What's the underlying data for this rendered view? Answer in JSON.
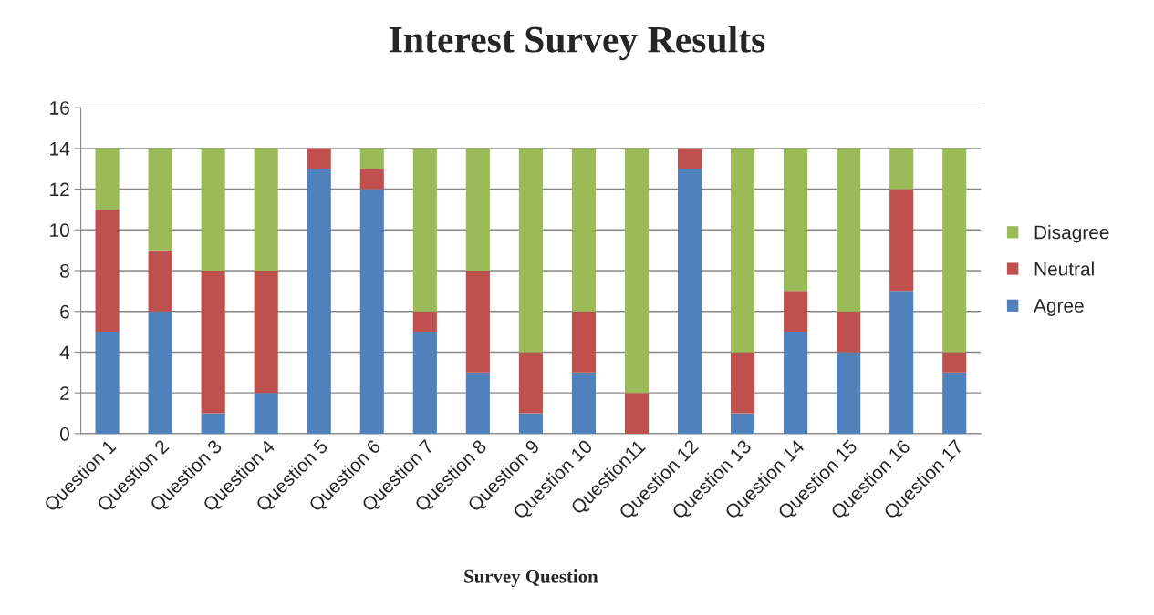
{
  "chart_data": {
    "type": "bar",
    "title": "Interest Survey Results",
    "xlabel": "Survey Question",
    "categories": [
      "Question 1",
      "Question 2",
      "Question 3",
      "Question 4",
      "Question 5",
      "Question 6",
      "Question 7",
      "Question 8",
      "Question 9",
      "Question 10",
      "Question11",
      "Question 12",
      "Question 13",
      "Question 14",
      "Question 15",
      "Question 16",
      "Question 17"
    ],
    "stacked": true,
    "series": [
      {
        "name": "Agree",
        "color": "#4f81bd",
        "values": [
          5,
          6,
          1,
          2,
          13,
          12,
          5,
          3,
          1,
          3,
          0,
          13,
          1,
          5,
          4,
          7,
          3
        ]
      },
      {
        "name": "Neutral",
        "color": "#c0504d",
        "values": [
          6,
          3,
          7,
          6,
          1,
          1,
          1,
          5,
          3,
          3,
          2,
          1,
          3,
          2,
          2,
          5,
          1
        ]
      },
      {
        "name": "Disagree",
        "color": "#9bbb59",
        "values": [
          3,
          5,
          6,
          6,
          0,
          1,
          8,
          6,
          10,
          8,
          12,
          0,
          10,
          7,
          8,
          2,
          10
        ]
      }
    ],
    "ylim": [
      0,
      16
    ],
    "yticks": [
      0,
      2,
      4,
      6,
      8,
      10,
      12,
      14,
      16
    ],
    "grid": "y",
    "legend": "right"
  }
}
